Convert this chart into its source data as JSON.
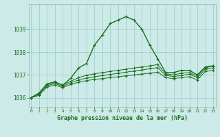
{
  "title": "Graphe pression niveau de la mer (hPa)",
  "xlabel_hours": [
    0,
    1,
    2,
    3,
    4,
    5,
    6,
    7,
    8,
    9,
    10,
    11,
    12,
    13,
    14,
    15,
    16,
    17,
    18,
    19,
    20,
    21,
    22,
    23
  ],
  "yticks": [
    1036,
    1037,
    1038,
    1039
  ],
  "ylim": [
    1035.6,
    1040.1
  ],
  "xlim": [
    -0.3,
    23.3
  ],
  "line_color": "#1a6e1a",
  "bg_color": "#cceae8",
  "grid_color": "#9ecece",
  "label_color": "#1a6e1a",
  "series": [
    [
      1036.0,
      1036.2,
      1036.6,
      1036.7,
      1036.55,
      1036.85,
      1037.3,
      1037.5,
      1038.3,
      1038.75,
      1039.25,
      1039.4,
      1039.55,
      1039.4,
      1039.0,
      1038.3,
      1037.7,
      1037.1,
      1037.1,
      1037.2,
      1037.2,
      1037.0,
      1037.35,
      1037.4
    ],
    [
      1036.0,
      1036.2,
      1036.58,
      1036.67,
      1036.55,
      1036.72,
      1036.88,
      1036.98,
      1037.05,
      1037.1,
      1037.15,
      1037.2,
      1037.25,
      1037.3,
      1037.35,
      1037.4,
      1037.45,
      1037.05,
      1037.0,
      1037.08,
      1037.1,
      1036.95,
      1037.32,
      1037.38
    ],
    [
      1036.0,
      1036.15,
      1036.52,
      1036.62,
      1036.5,
      1036.65,
      1036.78,
      1036.86,
      1036.92,
      1036.97,
      1037.02,
      1037.07,
      1037.12,
      1037.17,
      1037.22,
      1037.27,
      1037.32,
      1036.98,
      1036.93,
      1036.98,
      1037.03,
      1036.88,
      1037.25,
      1037.3
    ],
    [
      1036.0,
      1036.1,
      1036.46,
      1036.56,
      1036.44,
      1036.58,
      1036.68,
      1036.75,
      1036.8,
      1036.84,
      1036.88,
      1036.92,
      1036.96,
      1037.0,
      1037.04,
      1037.08,
      1037.12,
      1036.88,
      1036.84,
      1036.88,
      1036.92,
      1036.78,
      1037.15,
      1037.2
    ]
  ]
}
